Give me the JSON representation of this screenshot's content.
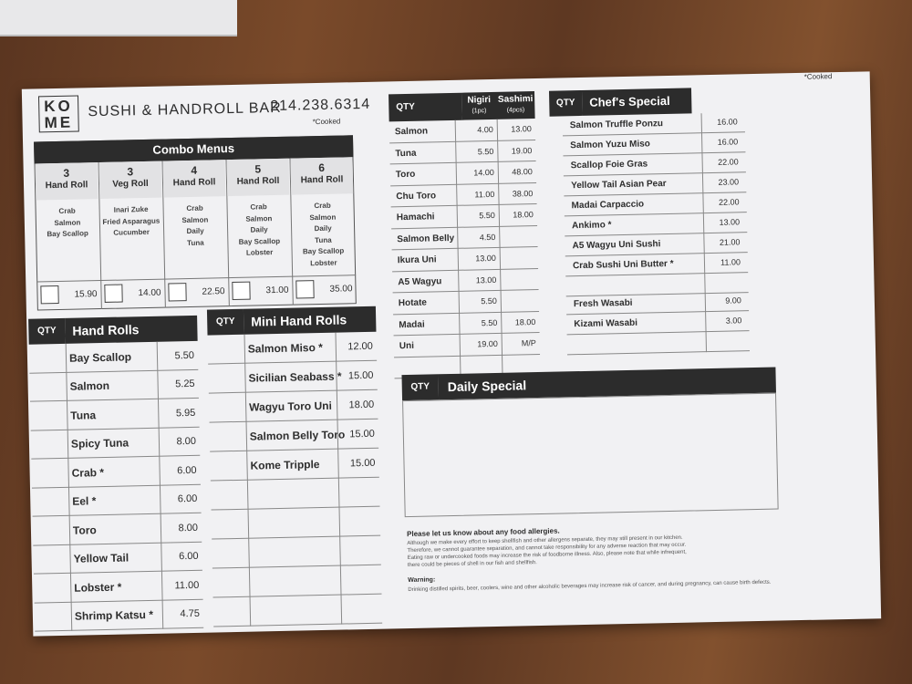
{
  "header": {
    "logo_lines": [
      "KO",
      "ME"
    ],
    "title": "SUSHI & HANDROLL BAR",
    "phone": "214.238.6314",
    "cooked_note": "*Cooked"
  },
  "combo": {
    "title": "Combo Menus",
    "columns": [
      {
        "number": "3",
        "name": "Hand Roll",
        "items": [
          "Crab",
          "Salmon",
          "Bay Scallop"
        ],
        "price": "15.90"
      },
      {
        "number": "3",
        "name": "Veg Roll",
        "items": [
          "Inari Zuke",
          "Fried Asparagus",
          "Cucumber"
        ],
        "price": "14.00"
      },
      {
        "number": "4",
        "name": "Hand Roll",
        "items": [
          "Crab",
          "Salmon",
          "Daily",
          "Tuna"
        ],
        "price": "22.50"
      },
      {
        "number": "5",
        "name": "Hand Roll",
        "items": [
          "Crab",
          "Salmon",
          "Daily",
          "Bay Scallop",
          "Lobster"
        ],
        "price": "31.00"
      },
      {
        "number": "6",
        "name": "Hand Roll",
        "items": [
          "Crab",
          "Salmon",
          "Daily",
          "Tuna",
          "Bay Scallop",
          "Lobster"
        ],
        "price": "35.00"
      }
    ]
  },
  "hand_rolls": {
    "qty_label": "QTY",
    "title": "Hand Rolls",
    "rows": [
      {
        "name": "Bay Scallop",
        "price": "5.50"
      },
      {
        "name": "Salmon",
        "price": "5.25"
      },
      {
        "name": "Tuna",
        "price": "5.95"
      },
      {
        "name": "Spicy Tuna",
        "price": "8.00"
      },
      {
        "name": "Crab *",
        "price": "6.00"
      },
      {
        "name": "Eel *",
        "price": "6.00"
      },
      {
        "name": "Toro",
        "price": "8.00"
      },
      {
        "name": "Yellow Tail",
        "price": "6.00"
      },
      {
        "name": "Lobster *",
        "price": "11.00"
      },
      {
        "name": "Shrimp Katsu *",
        "price": "4.75"
      }
    ]
  },
  "mini_hand_rolls": {
    "qty_label": "QTY",
    "title": "Mini Hand Rolls",
    "rows": [
      {
        "name": "Salmon Miso *",
        "price": "12.00"
      },
      {
        "name": "Sicilian Seabass *",
        "price": "15.00"
      },
      {
        "name": "Wagyu Toro Uni",
        "price": "18.00"
      },
      {
        "name": "Salmon Belly Toro",
        "price": "15.00"
      },
      {
        "name": "Kome Tripple",
        "price": "15.00"
      }
    ]
  },
  "nigiri_sashimi": {
    "qty_label": "QTY",
    "nigiri_label": "Nigiri",
    "nigiri_unit": "(1pc)",
    "sashimi_label": "Sashimi",
    "sashimi_unit": "(4pcs)",
    "rows": [
      {
        "name": "Salmon",
        "nigiri": "4.00",
        "sashimi": "13.00"
      },
      {
        "name": "Tuna",
        "nigiri": "5.50",
        "sashimi": "19.00"
      },
      {
        "name": "Toro",
        "nigiri": "14.00",
        "sashimi": "48.00"
      },
      {
        "name": "Chu Toro",
        "nigiri": "11.00",
        "sashimi": "38.00"
      },
      {
        "name": "Hamachi",
        "nigiri": "5.50",
        "sashimi": "18.00"
      },
      {
        "name": "Salmon Belly",
        "nigiri": "4.50"
      },
      {
        "name": "Ikura Uni",
        "nigiri": "13.00"
      },
      {
        "name": "A5 Wagyu",
        "nigiri": "13.00"
      },
      {
        "name": "Hotate",
        "nigiri": "5.50"
      },
      {
        "name": "Madai",
        "nigiri": "5.50",
        "sashimi": "18.00"
      },
      {
        "name": "Uni",
        "nigiri": "19.00",
        "sashimi": "M/P"
      }
    ]
  },
  "chefs_special": {
    "cooked_note": "*Cooked",
    "qty_label": "QTY",
    "title": "Chef's Special",
    "rows": [
      {
        "name": "Salmon Truffle Ponzu",
        "price": "16.00"
      },
      {
        "name": "Salmon Yuzu Miso",
        "price": "16.00"
      },
      {
        "name": "Scallop Foie Gras",
        "price": "22.00"
      },
      {
        "name": "Yellow Tail Asian Pear",
        "price": "23.00"
      },
      {
        "name": "Madai Carpaccio",
        "price": "22.00"
      },
      {
        "name": "Ankimo *",
        "price": "13.00"
      },
      {
        "name": "A5 Wagyu Uni Sushi",
        "price": "21.00"
      },
      {
        "name": "Crab Sushi Uni Butter *",
        "price": "11.00"
      }
    ],
    "extras": [
      {
        "name": "Fresh Wasabi",
        "price": "9.00"
      },
      {
        "name": "Kizami Wasabi",
        "price": "3.00"
      }
    ]
  },
  "daily_special": {
    "qty_label": "QTY",
    "title": "Daily Special"
  },
  "notice": {
    "allergy_title": "Please let us know about any food allergies.",
    "allergy_text": "Although we make every effort to keep shellfish and other allergens separate, they may still present in our kitchen. Therefore, we cannot guarantee separation, and cannot take responsibility for any adverse reaction that may occur. Eating raw or undercooked foods may increase the risk of foodborne illness. Also, please note that while infrequent, there could be pieces of shell in our fish and shellfish.",
    "warning_title": "Warning:",
    "warning_text": "Drinking distilled spirits, beer, coolers, wine and other alcoholic beverages may increase risk of cancer, and during pregnancy, can cause birth defects."
  }
}
